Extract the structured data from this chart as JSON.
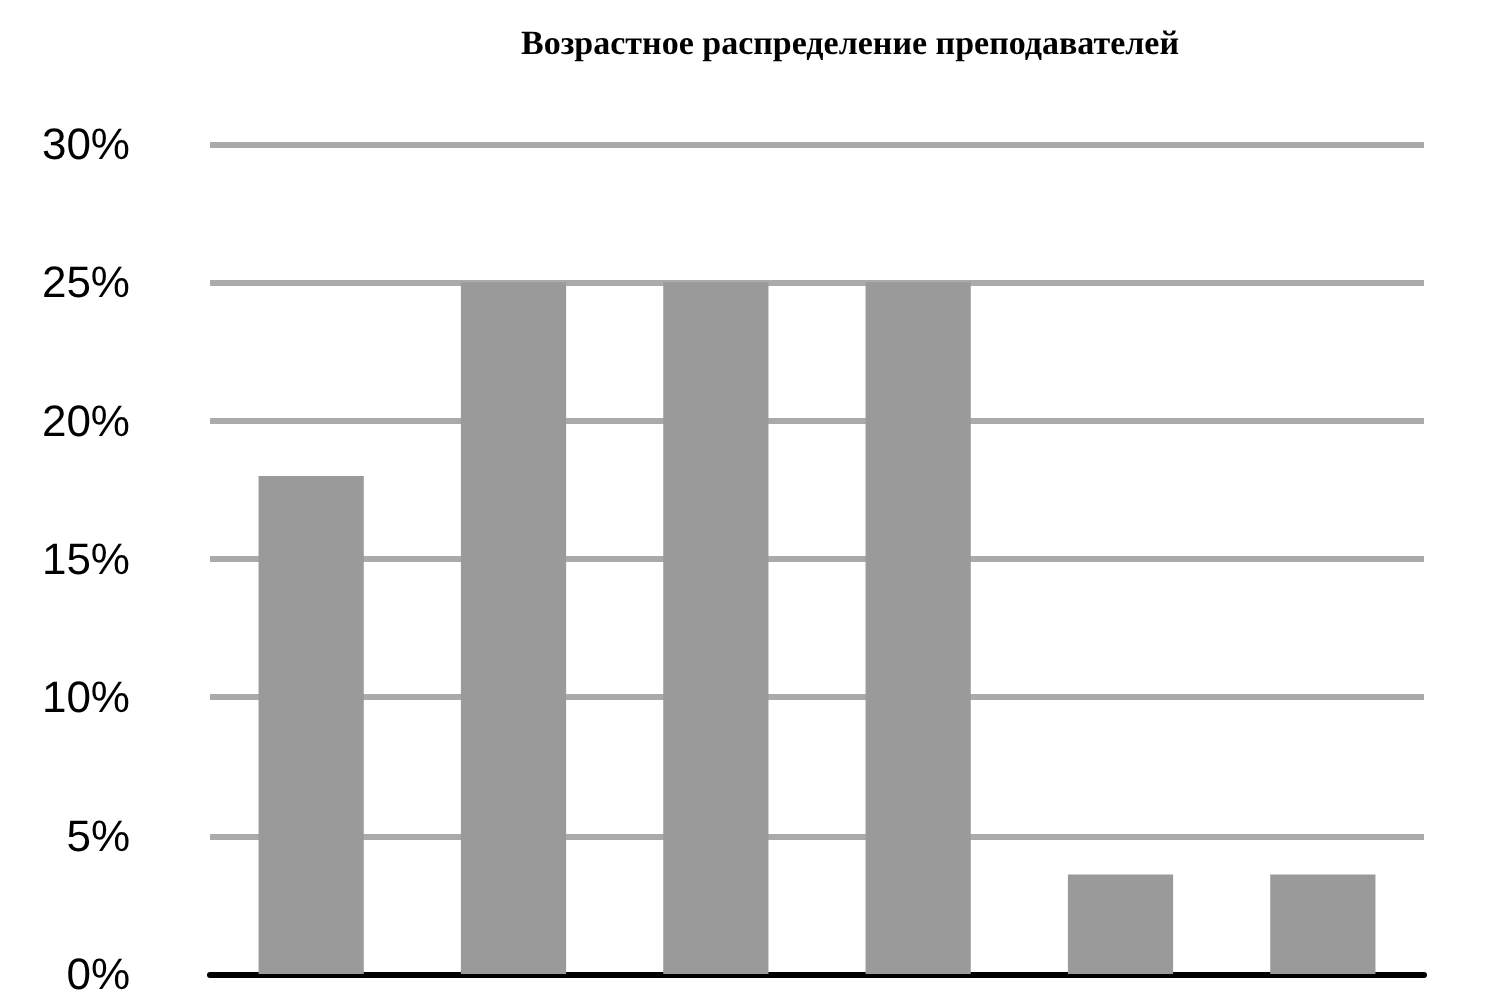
{
  "chart_data": {
    "type": "bar",
    "title": "Возрастное распределение преподавателей",
    "categories": [
      null,
      null,
      null,
      null,
      null,
      null
    ],
    "values": [
      18,
      25,
      25,
      25,
      3.6,
      3.6
    ],
    "color": "#9a9a9a",
    "ylim": [
      0,
      30
    ],
    "yticks": [
      {
        "value": 0,
        "label": "0%"
      },
      {
        "value": 5,
        "label": "5%"
      },
      {
        "value": 10,
        "label": "10%"
      },
      {
        "value": 15,
        "label": "15%"
      },
      {
        "value": 20,
        "label": "20%"
      },
      {
        "value": 25,
        "label": "25%"
      },
      {
        "value": 30,
        "label": "30%"
      }
    ],
    "grid": "y"
  }
}
